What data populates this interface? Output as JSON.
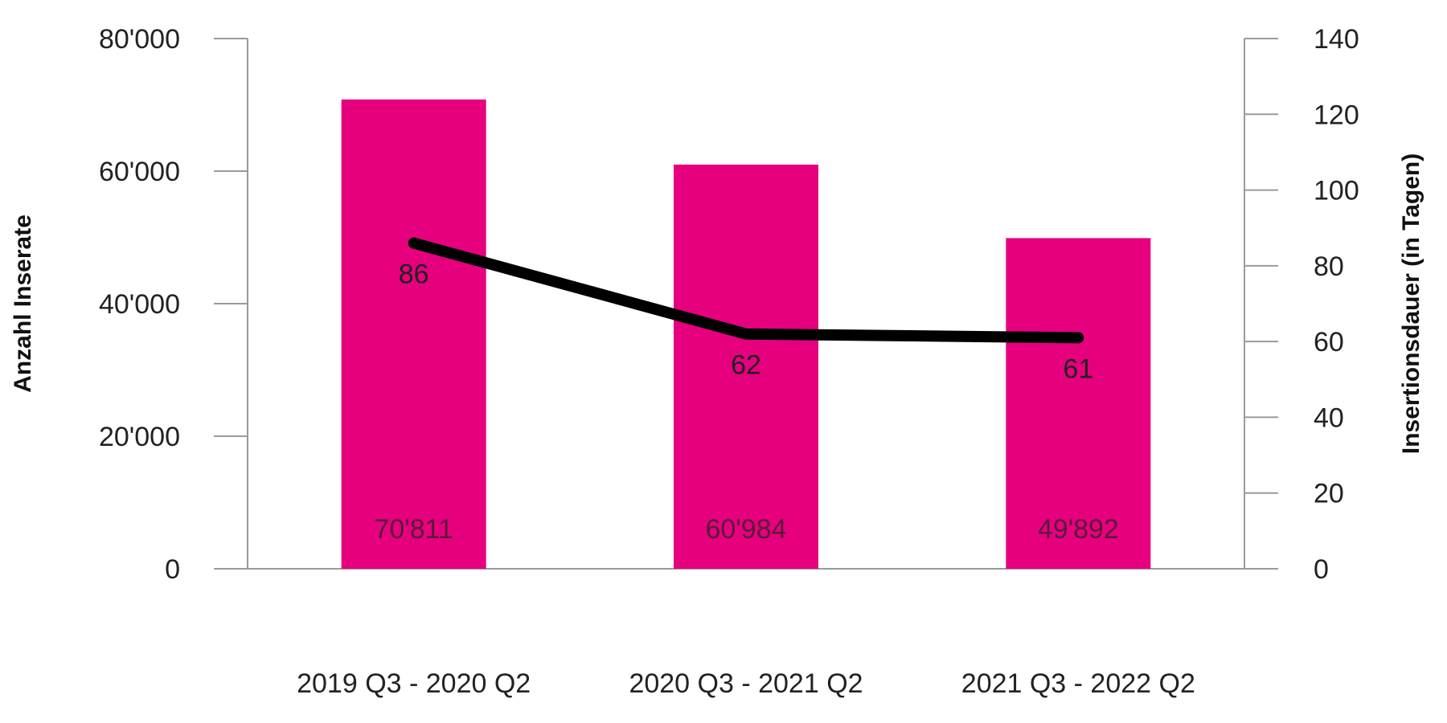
{
  "chart_data": {
    "type": "bar",
    "categories": [
      "2019 Q3 - 2020 Q2",
      "2020 Q3 - 2021 Q2",
      "2021 Q3 - 2022 Q2"
    ],
    "series": [
      {
        "type": "bar",
        "axis": "left",
        "values": [
          70811,
          60984,
          49892
        ],
        "value_labels": [
          "70'811",
          "60'984",
          "49'892"
        ],
        "color": "#e6007e"
      },
      {
        "type": "line",
        "axis": "right",
        "values": [
          86,
          62,
          61
        ],
        "value_labels": [
          "86",
          "62",
          "61"
        ],
        "color": "#000000"
      }
    ],
    "y_left": {
      "label": "Anzahl Inserate",
      "lim": [
        0,
        80000
      ],
      "ticks": [
        0,
        20000,
        40000,
        60000,
        80000
      ],
      "tick_labels": [
        "0",
        "20'000",
        "40'000",
        "60'000",
        "80'000"
      ]
    },
    "y_right": {
      "label": "Insertionsdauer (in Tagen)",
      "lim": [
        0,
        140
      ],
      "ticks": [
        0,
        20,
        40,
        60,
        80,
        100,
        120,
        140
      ],
      "tick_labels": [
        "0",
        "20",
        "40",
        "60",
        "80",
        "100",
        "120",
        "140"
      ]
    },
    "grid": false,
    "legend": "none"
  }
}
